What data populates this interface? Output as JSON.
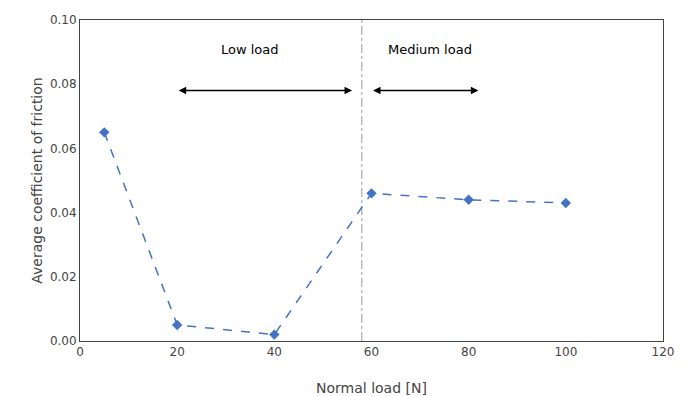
{
  "chart_data": {
    "type": "line",
    "xlabel": "Normal load [N]",
    "ylabel": "Average coefficient of friction",
    "x": [
      5,
      20,
      40,
      60,
      80,
      100
    ],
    "values": [
      0.065,
      0.005,
      0.002,
      0.046,
      0.044,
      0.043
    ],
    "color": "#4472C4",
    "marker": "diamond",
    "line_style": "dashed",
    "xlim": [
      0,
      120
    ],
    "ylim": [
      0.0,
      0.1
    ],
    "xticks": [
      0,
      20,
      40,
      60,
      80,
      100,
      120
    ],
    "yticks": [
      {
        "value": 0,
        "label": "0.00"
      },
      0.02,
      0.04,
      0.06,
      0.08,
      {
        "value": 0.1,
        "label": "0.10"
      }
    ],
    "grid": false,
    "vlines": [
      {
        "x": 58,
        "color": "#aaaaaa",
        "line_style": "dashdot"
      }
    ],
    "arrows": [
      {
        "x1": 20,
        "x2": 56,
        "y": 0.078
      },
      {
        "x1": 60,
        "x2": 82,
        "y": 0.078
      }
    ],
    "annotations": [
      {
        "text": "Low load",
        "x": 35,
        "y": 0.088
      },
      {
        "text": "Medium load",
        "x": 72,
        "y": 0.088
      }
    ]
  }
}
